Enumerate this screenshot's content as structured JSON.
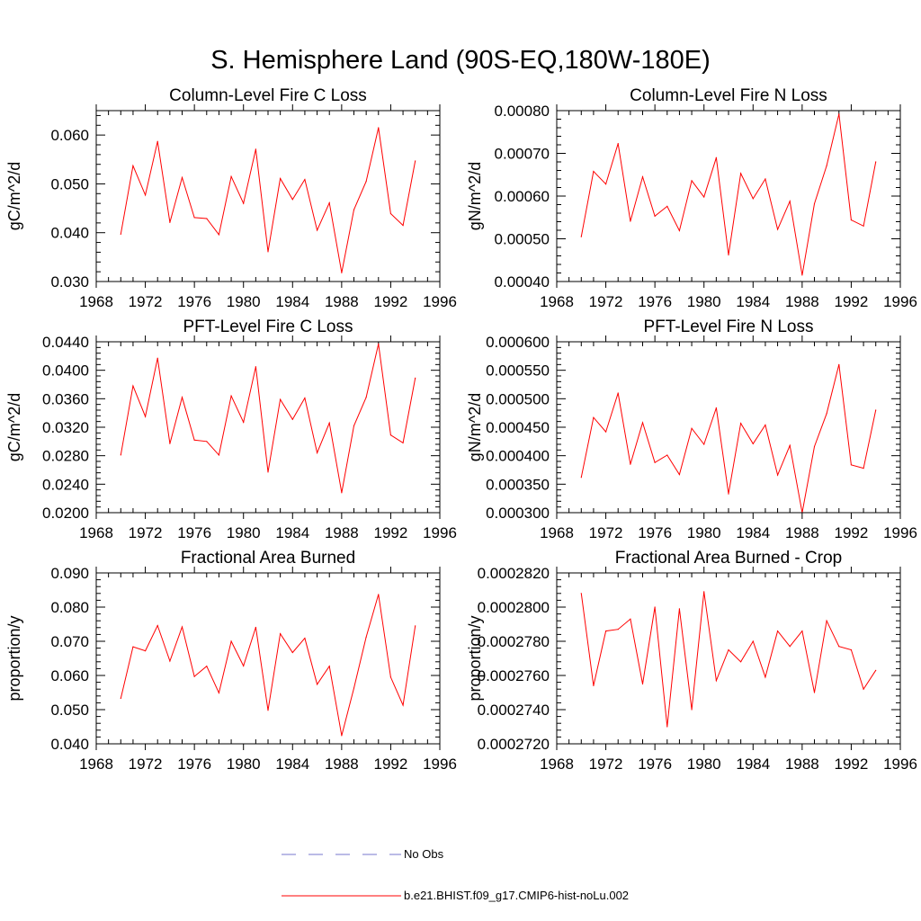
{
  "figure": {
    "title": "S. Hemisphere Land (90S-EQ,180W-180E)",
    "line_color": "#ff0000",
    "obs_color": "#7777cc"
  },
  "legend": [
    {
      "label": "No Obs",
      "style": "dashed",
      "color": "#7777cc"
    },
    {
      "label": "b.e21.BHIST.f09_g17.CMIP6-hist-noLu.002",
      "style": "solid",
      "color": "#ff0000"
    }
  ],
  "chart_data": [
    {
      "type": "line",
      "title": "Column-Level Fire C Loss",
      "ylabel": "gC/m^2/d",
      "xlim": [
        1968,
        1996
      ],
      "xticks": [
        "1968",
        "1972",
        "1976",
        "1980",
        "1984",
        "1988",
        "1992",
        "1996"
      ],
      "ylim": [
        0.03,
        0.065
      ],
      "yticks": [
        "0.030",
        "0.040",
        "0.050",
        "0.060"
      ],
      "x": [
        1970,
        1971,
        1972,
        1973,
        1974,
        1975,
        1976,
        1977,
        1978,
        1979,
        1980,
        1981,
        1982,
        1983,
        1984,
        1985,
        1986,
        1987,
        1988,
        1989,
        1990,
        1991,
        1992,
        1993,
        1994
      ],
      "series": [
        {
          "values": [
            0.0397,
            0.0537,
            0.0477,
            0.0587,
            0.0421,
            0.0513,
            0.0431,
            0.0429,
            0.0396,
            0.0515,
            0.046,
            0.0571,
            0.0361,
            0.0511,
            0.0468,
            0.0509,
            0.0405,
            0.0461,
            0.0318,
            0.0447,
            0.0505,
            0.0615,
            0.0439,
            0.0415,
            0.0547
          ]
        }
      ]
    },
    {
      "type": "line",
      "title": "Column-Level Fire N Loss",
      "ylabel": "gN/m^2/d",
      "xlim": [
        1968,
        1996
      ],
      "xticks": [
        "1968",
        "1972",
        "1976",
        "1980",
        "1984",
        "1988",
        "1992",
        "1996"
      ],
      "ylim": [
        0.0004,
        0.0008
      ],
      "yticks": [
        "0.00040",
        "0.00050",
        "0.00060",
        "0.00070",
        "0.00080"
      ],
      "x": [
        1970,
        1971,
        1972,
        1973,
        1974,
        1975,
        1976,
        1977,
        1978,
        1979,
        1980,
        1981,
        1982,
        1983,
        1984,
        1985,
        1986,
        1987,
        1988,
        1989,
        1990,
        1991,
        1992,
        1993,
        1994
      ],
      "series": [
        {
          "values": [
            0.000505,
            0.000658,
            0.000628,
            0.000723,
            0.000541,
            0.000645,
            0.000553,
            0.000576,
            0.000519,
            0.000636,
            0.000598,
            0.00069,
            0.000462,
            0.000653,
            0.000594,
            0.00064,
            0.000522,
            0.000588,
            0.000415,
            0.000582,
            0.000671,
            0.000792,
            0.000544,
            0.00053,
            0.00068
          ]
        }
      ]
    },
    {
      "type": "line",
      "title": "PFT-Level Fire C Loss",
      "ylabel": "gC/m^2/d",
      "xlim": [
        1968,
        1996
      ],
      "xticks": [
        "1968",
        "1972",
        "1976",
        "1980",
        "1984",
        "1988",
        "1992",
        "1996"
      ],
      "ylim": [
        0.02,
        0.044
      ],
      "yticks": [
        "0.0200",
        "0.0240",
        "0.0280",
        "0.0320",
        "0.0360",
        "0.0400",
        "0.0440"
      ],
      "x": [
        1970,
        1971,
        1972,
        1973,
        1974,
        1975,
        1976,
        1977,
        1978,
        1979,
        1980,
        1981,
        1982,
        1983,
        1984,
        1985,
        1986,
        1987,
        1988,
        1989,
        1990,
        1991,
        1992,
        1993,
        1994
      ],
      "series": [
        {
          "values": [
            0.0281,
            0.0378,
            0.0335,
            0.0417,
            0.0297,
            0.0362,
            0.0302,
            0.03,
            0.0281,
            0.0364,
            0.0327,
            0.0405,
            0.0257,
            0.0359,
            0.0331,
            0.0361,
            0.0284,
            0.0326,
            0.0228,
            0.0322,
            0.0362,
            0.0437,
            0.0309,
            0.0298,
            0.0389
          ]
        }
      ]
    },
    {
      "type": "line",
      "title": "PFT-Level Fire N Loss",
      "ylabel": "gN/m^2/d",
      "xlim": [
        1968,
        1996
      ],
      "xticks": [
        "1968",
        "1972",
        "1976",
        "1980",
        "1984",
        "1988",
        "1992",
        "1996"
      ],
      "ylim": [
        0.0003,
        0.0006
      ],
      "yticks": [
        "0.000300",
        "0.000350",
        "0.000400",
        "0.000450",
        "0.000500",
        "0.000550",
        "0.000600"
      ],
      "x": [
        1970,
        1971,
        1972,
        1973,
        1974,
        1975,
        1976,
        1977,
        1978,
        1979,
        1980,
        1981,
        1982,
        1983,
        1984,
        1985,
        1986,
        1987,
        1988,
        1989,
        1990,
        1991,
        1992,
        1993,
        1994
      ],
      "series": [
        {
          "values": [
            0.000362,
            0.000467,
            0.000442,
            0.00051,
            0.000385,
            0.000458,
            0.000388,
            0.000401,
            0.000367,
            0.000448,
            0.00042,
            0.000484,
            0.000333,
            0.000457,
            0.000421,
            0.000454,
            0.000366,
            0.000418,
            0.0003,
            0.000416,
            0.000474,
            0.00056,
            0.000384,
            0.000378,
            0.00048
          ]
        }
      ]
    },
    {
      "type": "line",
      "title": "Fractional Area Burned",
      "ylabel": "proportion/y",
      "xlim": [
        1968,
        1996
      ],
      "xticks": [
        "1968",
        "1972",
        "1976",
        "1980",
        "1984",
        "1988",
        "1992",
        "1996"
      ],
      "ylim": [
        0.04,
        0.09
      ],
      "yticks": [
        "0.040",
        "0.050",
        "0.060",
        "0.070",
        "0.080",
        "0.090"
      ],
      "x": [
        1970,
        1971,
        1972,
        1973,
        1974,
        1975,
        1976,
        1977,
        1978,
        1979,
        1980,
        1981,
        1982,
        1983,
        1984,
        1985,
        1986,
        1987,
        1988,
        1989,
        1990,
        1991,
        1992,
        1993,
        1994
      ],
      "series": [
        {
          "values": [
            0.0533,
            0.0684,
            0.0672,
            0.0746,
            0.0642,
            0.0742,
            0.0597,
            0.0627,
            0.0549,
            0.07,
            0.0628,
            0.0741,
            0.0498,
            0.0722,
            0.0667,
            0.0709,
            0.0574,
            0.0627,
            0.0424,
            0.0563,
            0.0712,
            0.0837,
            0.0595,
            0.0513,
            0.0745
          ]
        }
      ]
    },
    {
      "type": "line",
      "title": "Fractional Area Burned - Crop",
      "ylabel": "proportion/y",
      "xlim": [
        1968,
        1996
      ],
      "xticks": [
        "1968",
        "1972",
        "1976",
        "1980",
        "1984",
        "1988",
        "1992",
        "1996"
      ],
      "ylim": [
        0.000272,
        0.000282
      ],
      "yticks": [
        "0.0002720",
        "0.0002740",
        "0.0002760",
        "0.0002780",
        "0.0002800",
        "0.0002820"
      ],
      "x": [
        1970,
        1971,
        1972,
        1973,
        1974,
        1975,
        1976,
        1977,
        1978,
        1979,
        1980,
        1981,
        1982,
        1983,
        1984,
        1985,
        1986,
        1987,
        1988,
        1989,
        1990,
        1991,
        1992,
        1993,
        1994
      ],
      "series": [
        {
          "values": [
            0.0002808,
            0.0002754,
            0.0002786,
            0.0002787,
            0.0002793,
            0.0002755,
            0.00028,
            0.000273,
            0.0002799,
            0.000274,
            0.0002809,
            0.0002757,
            0.0002775,
            0.0002768,
            0.000278,
            0.0002759,
            0.0002786,
            0.0002777,
            0.0002786,
            0.000275,
            0.0002792,
            0.0002777,
            0.0002775,
            0.0002752,
            0.0002763
          ]
        }
      ]
    }
  ]
}
